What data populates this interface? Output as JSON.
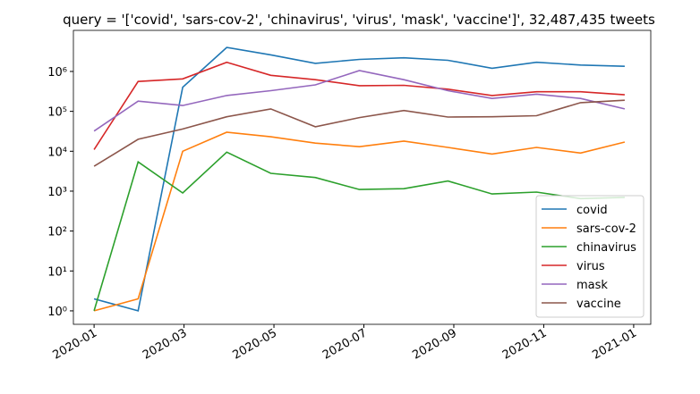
{
  "chart_data": {
    "type": "line",
    "title": "query = '['covid', 'sars-cov-2', 'chinavirus', 'virus', 'mask', 'vaccine']', 32,487,435 tweets",
    "x": [
      0,
      0.98,
      1.97,
      2.95,
      3.93,
      4.92,
      5.9,
      6.89,
      7.87,
      8.85,
      9.84,
      10.82,
      11.8
    ],
    "xlim": [
      -0.46,
      12.38
    ],
    "xticks": [
      {
        "value": 0,
        "label": "2020-01"
      },
      {
        "value": 2,
        "label": "2020-03"
      },
      {
        "value": 4,
        "label": "2020-05"
      },
      {
        "value": 6,
        "label": "2020-07"
      },
      {
        "value": 8,
        "label": "2020-09"
      },
      {
        "value": 10,
        "label": "2020-11"
      },
      {
        "value": 12,
        "label": "2021-01"
      }
    ],
    "log_y": true,
    "ylim": [
      0.46,
      10700000
    ],
    "yticks": [
      {
        "value": 1,
        "label": "10⁰"
      },
      {
        "value": 10,
        "label": "10¹"
      },
      {
        "value": 100,
        "label": "10²"
      },
      {
        "value": 1000,
        "label": "10³"
      },
      {
        "value": 10000,
        "label": "10⁴"
      },
      {
        "value": 100000,
        "label": "10⁵"
      },
      {
        "value": 1000000,
        "label": "10⁶"
      }
    ],
    "legend": "lower right",
    "series": [
      {
        "name": "covid",
        "color": "#1f77b4",
        "values": [
          2,
          1,
          400000,
          4000000,
          2600000,
          1600000,
          2000000,
          2200000,
          1900000,
          1200000,
          1700000,
          1450000,
          1350000
        ]
      },
      {
        "name": "sars-cov-2",
        "color": "#ff7f0e",
        "values": [
          1,
          2,
          10000,
          30000,
          23000,
          16000,
          13000,
          18000,
          12500,
          8500,
          12500,
          9000,
          17000
        ]
      },
      {
        "name": "chinavirus",
        "color": "#2ca02c",
        "values": [
          1,
          5400,
          900,
          9500,
          2800,
          2200,
          1100,
          1150,
          1800,
          850,
          950,
          650,
          700
        ]
      },
      {
        "name": "virus",
        "color": "#d62728",
        "values": [
          11000,
          560000,
          650000,
          1700000,
          800000,
          620000,
          440000,
          450000,
          360000,
          250000,
          310000,
          310000,
          260000
        ]
      },
      {
        "name": "mask",
        "color": "#9467bd",
        "values": [
          32000,
          180000,
          140000,
          250000,
          330000,
          460000,
          1050000,
          620000,
          330000,
          210000,
          270000,
          210000,
          115000
        ]
      },
      {
        "name": "vaccine",
        "color": "#8c564b",
        "values": [
          4200,
          20000,
          36000,
          73000,
          115000,
          41000,
          70000,
          105000,
          72000,
          73000,
          78000,
          165000,
          190000
        ]
      }
    ]
  }
}
